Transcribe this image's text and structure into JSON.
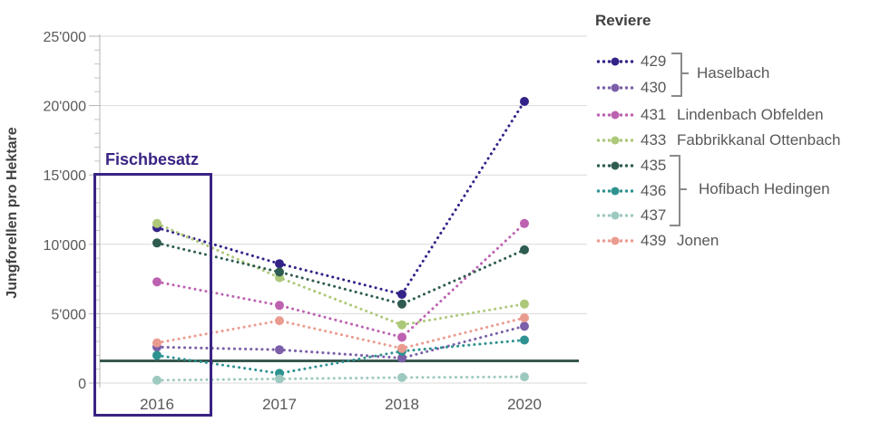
{
  "chart_data": {
    "type": "line",
    "line_style": "dotted-with-point-markers",
    "title": "",
    "xlabel": "",
    "ylabel": "Jungforellen pro Hektare",
    "categories": [
      "2016",
      "2017",
      "2018",
      "2020"
    ],
    "series": [
      {
        "id": "429",
        "water": "Haselbach",
        "color": "#332288",
        "values": [
          11200,
          8600,
          6400,
          20300
        ]
      },
      {
        "id": "430",
        "water": "Haselbach",
        "color": "#7b5fa8",
        "values": [
          2600,
          2400,
          1800,
          4100
        ]
      },
      {
        "id": "431",
        "water": "Lindenbach Obfelden",
        "color": "#bd62b0",
        "values": [
          7300,
          5600,
          3300,
          11500
        ]
      },
      {
        "id": "433",
        "water": "Fabbrikkanal Ottenbach",
        "color": "#adc878",
        "values": [
          11500,
          7600,
          4200,
          5700
        ]
      },
      {
        "id": "435",
        "water": "Hofibach Hedingen",
        "color": "#2f5c51",
        "values": [
          10100,
          8000,
          5700,
          9600
        ]
      },
      {
        "id": "436",
        "water": "Hofibach Hedingen",
        "color": "#2e9290",
        "values": [
          2000,
          700,
          2300,
          3100
        ]
      },
      {
        "id": "437",
        "water": "Hofibach Hedingen",
        "color": "#9ec9c0",
        "values": [
          200,
          300,
          400,
          450
        ]
      },
      {
        "id": "439",
        "water": "Jonen",
        "color": "#ea9b8f",
        "values": [
          2900,
          4500,
          2500,
          4700
        ]
      }
    ],
    "ylim": [
      0,
      25000
    ],
    "y_ticks": [
      0,
      5000,
      10000,
      15000,
      20000,
      25000
    ],
    "y_tick_labels": [
      "0",
      "5'000",
      "10'000",
      "15'000",
      "20'000",
      "25'000"
    ],
    "minor_tick_step": 1000,
    "grid": "horizontal",
    "legend_position": "right",
    "reference_line": {
      "value": 1600,
      "color": "#38584e"
    },
    "annotation": {
      "label": "Fischbesatz",
      "color": "#3a2383",
      "category": "2016"
    }
  },
  "legend": {
    "title": "Reviere",
    "entries": [
      {
        "label": "429",
        "series": "429",
        "name": ""
      },
      {
        "label": "430",
        "series": "430",
        "name": ""
      },
      {
        "label": "431",
        "series": "431",
        "name": "Lindenbach Obfelden"
      },
      {
        "label": "433",
        "series": "433",
        "name": "Fabbrikkanal Ottenbach"
      },
      {
        "label": "435",
        "series": "435",
        "name": ""
      },
      {
        "label": "436",
        "series": "436",
        "name": ""
      },
      {
        "label": "437",
        "series": "437",
        "name": ""
      },
      {
        "label": "439",
        "series": "439",
        "name": "Jonen"
      }
    ],
    "brackets": [
      {
        "name": "Haselbach",
        "entries": [
          "429",
          "430"
        ]
      },
      {
        "name": "Hofibach Hedingen",
        "entries": [
          "435",
          "436",
          "437"
        ]
      }
    ]
  }
}
